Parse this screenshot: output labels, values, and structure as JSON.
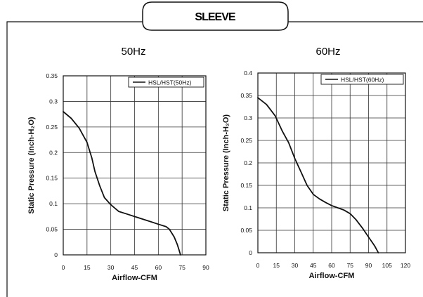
{
  "page": {
    "title": "SLEEVE"
  },
  "chart_data": [
    {
      "type": "line",
      "title": "50Hz",
      "xlabel": "Airflow-CFM",
      "ylabel": "Static Pressure (Inch-H₂O)",
      "xlim": [
        0,
        90
      ],
      "ylim": [
        0,
        0.35
      ],
      "x_ticks": [
        "0",
        "15",
        "30",
        "45",
        "60",
        "75",
        "90"
      ],
      "y_ticks": [
        "0",
        "0.05",
        "0.1",
        "0.15",
        "0.2",
        "0.25",
        "0.3",
        "0.35"
      ],
      "grid": true,
      "legend_position": "top-right",
      "series": [
        {
          "name": "HSL/HST(50Hz)",
          "points": [
            [
              0,
              0.28
            ],
            [
              5,
              0.267
            ],
            [
              10,
              0.248
            ],
            [
              15,
              0.22
            ],
            [
              18,
              0.19
            ],
            [
              20,
              0.163
            ],
            [
              23,
              0.135
            ],
            [
              26,
              0.112
            ],
            [
              30,
              0.098
            ],
            [
              35,
              0.085
            ],
            [
              40,
              0.08
            ],
            [
              45,
              0.075
            ],
            [
              50,
              0.07
            ],
            [
              55,
              0.065
            ],
            [
              60,
              0.06
            ],
            [
              65,
              0.055
            ],
            [
              67,
              0.05
            ],
            [
              70,
              0.035
            ],
            [
              72,
              0.02
            ],
            [
              73,
              0.01
            ],
            [
              74,
              0.0
            ]
          ]
        }
      ]
    },
    {
      "type": "line",
      "title": "60Hz",
      "xlabel": "Airflow-CFM",
      "ylabel": "Static Pressure (Inch-H₂O)",
      "xlim": [
        0,
        120
      ],
      "ylim": [
        0,
        0.4
      ],
      "x_ticks": [
        "0",
        "15",
        "30",
        "45",
        "60",
        "75",
        "90",
        "105",
        "120"
      ],
      "y_ticks": [
        "0",
        "0.05",
        "0.1",
        "0.15",
        "0.2",
        "0.25",
        "0.3",
        "0.35",
        "0.4"
      ],
      "grid": true,
      "legend_position": "top-right",
      "series": [
        {
          "name": "HSL/HST(60Hz)",
          "points": [
            [
              0,
              0.345
            ],
            [
              7,
              0.33
            ],
            [
              14,
              0.305
            ],
            [
              20,
              0.27
            ],
            [
              25,
              0.245
            ],
            [
              30,
              0.21
            ],
            [
              35,
              0.18
            ],
            [
              40,
              0.15
            ],
            [
              45,
              0.13
            ],
            [
              50,
              0.12
            ],
            [
              55,
              0.112
            ],
            [
              60,
              0.105
            ],
            [
              65,
              0.1
            ],
            [
              70,
              0.095
            ],
            [
              75,
              0.087
            ],
            [
              80,
              0.073
            ],
            [
              85,
              0.055
            ],
            [
              90,
              0.035
            ],
            [
              95,
              0.015
            ],
            [
              98,
              0.0
            ]
          ]
        }
      ]
    }
  ]
}
